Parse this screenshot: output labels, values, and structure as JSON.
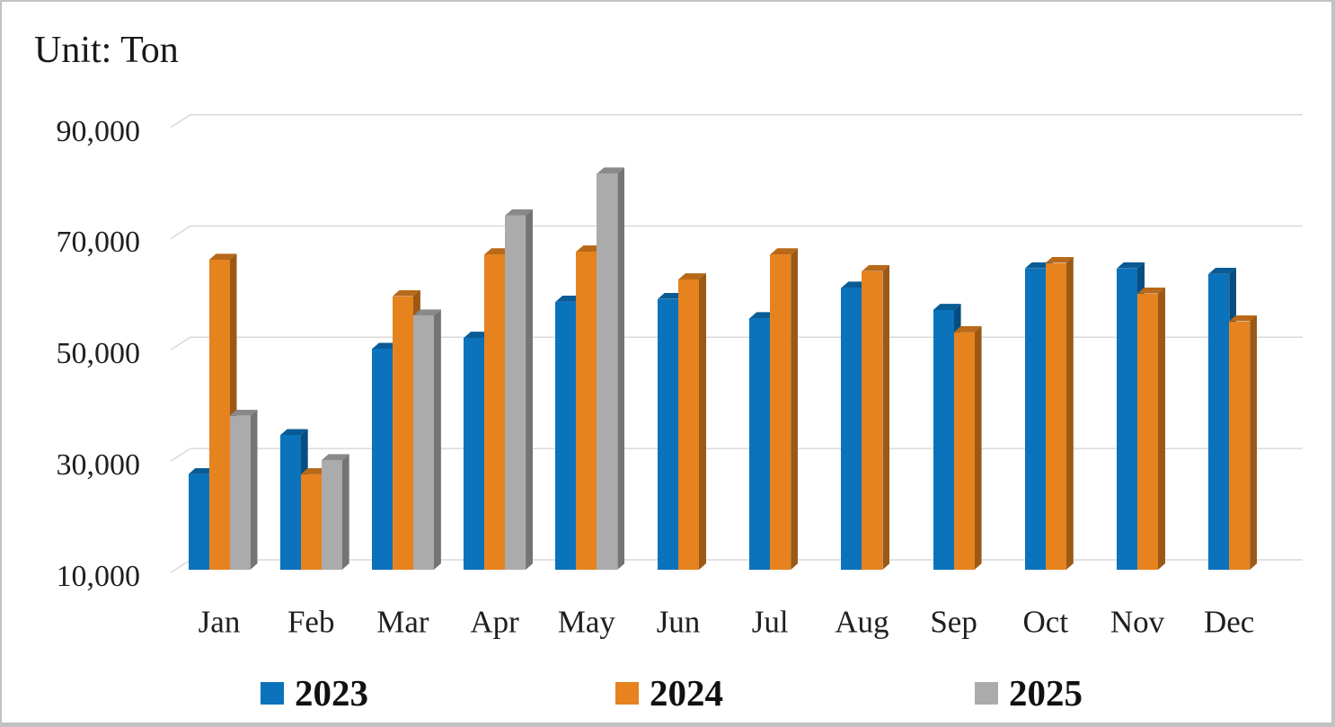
{
  "chart_data": {
    "type": "bar",
    "title": "Unit: Ton",
    "effect": "3d",
    "categories": [
      "Jan",
      "Feb",
      "Mar",
      "Apr",
      "May",
      "Jun",
      "Jul",
      "Aug",
      "Sep",
      "Oct",
      "Nov",
      "Dec"
    ],
    "series": [
      {
        "name": "2023",
        "color": "#0B72BC",
        "values": [
          26500,
          33500,
          49000,
          51000,
          57500,
          58000,
          54500,
          60000,
          56000,
          63500,
          63500,
          62500
        ]
      },
      {
        "name": "2024",
        "color": "#E6831F",
        "values": [
          65000,
          26500,
          58500,
          66000,
          66500,
          61500,
          66000,
          63000,
          52000,
          64500,
          59000,
          54000
        ]
      },
      {
        "name": "2025",
        "color": "#ABABAB",
        "values": [
          37000,
          29000,
          55000,
          73000,
          80500,
          null,
          null,
          null,
          null,
          null,
          null,
          null
        ]
      }
    ],
    "ylabel": "",
    "xlabel": "",
    "ylim": [
      10000,
      90000
    ],
    "yticks": [
      90000,
      70000,
      50000,
      30000,
      10000
    ],
    "ytick_labels": [
      "90,000",
      "70,000",
      "50,000",
      "30,000",
      "10,000"
    ],
    "grid": true,
    "gridline_color": "#D9D9D9",
    "legend_position": "bottom"
  }
}
